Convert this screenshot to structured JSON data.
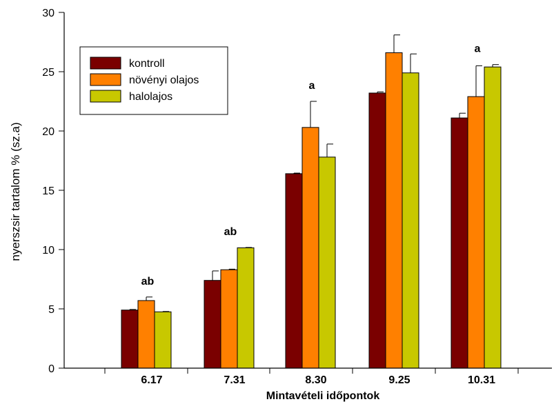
{
  "chart_data": {
    "type": "bar",
    "title": "",
    "xlabel": "Mintavételi időpontok",
    "ylabel": "nyerszsir tartalom % (sz.a)",
    "ylim": [
      0,
      30
    ],
    "yticks": [
      0,
      5,
      10,
      15,
      20,
      25,
      30
    ],
    "categories": [
      "6.17",
      "7.31",
      "8.30",
      "9.25",
      "10.31"
    ],
    "series": [
      {
        "name": "kontroll",
        "color": "#7a0000",
        "values": [
          4.9,
          7.4,
          16.4,
          23.2,
          21.1
        ],
        "errors": [
          0.05,
          0.8,
          0.05,
          0.1,
          0.4
        ]
      },
      {
        "name": "növényi olajos",
        "color": "#ff8000",
        "values": [
          5.7,
          8.3,
          20.3,
          26.6,
          22.9
        ],
        "errors": [
          0.3,
          0.05,
          2.2,
          1.5,
          2.6
        ]
      },
      {
        "name": "halolajos",
        "color": "#c8c800",
        "values": [
          4.75,
          10.15,
          17.8,
          24.9,
          25.4
        ],
        "errors": [
          0.03,
          0.03,
          1.1,
          1.6,
          0.2
        ]
      }
    ],
    "annotations": [
      "ab",
      "ab",
      "a",
      "",
      "a"
    ],
    "legend_position": "top-left",
    "grid": false
  }
}
